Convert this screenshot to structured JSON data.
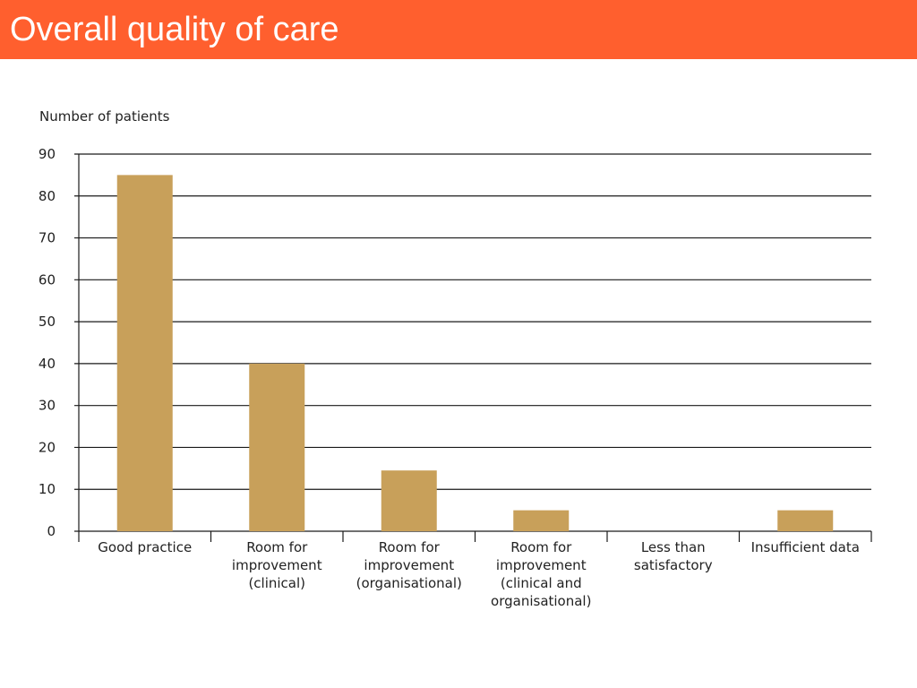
{
  "slide": {
    "title": "Overall quality of care",
    "header_color": "#ff5f2e"
  },
  "chart_data": {
    "type": "bar",
    "title": "",
    "ylabel": "Number of patients",
    "xlabel": "",
    "ylim": [
      0,
      90
    ],
    "yticks": [
      0,
      10,
      20,
      30,
      40,
      50,
      60,
      70,
      80,
      90
    ],
    "grid": true,
    "bar_color": "#c8a05a",
    "categories": [
      [
        "Good practice"
      ],
      [
        "Room for",
        "improvement",
        "(clinical)"
      ],
      [
        "Room for",
        "improvement",
        "(organisational)"
      ],
      [
        "Room for",
        "improvement",
        "(clinical and",
        "organisational)"
      ],
      [
        "Less than",
        "satisfactory"
      ],
      [
        "Insufficient data"
      ]
    ],
    "values": [
      85,
      40,
      14.5,
      5,
      0,
      5
    ]
  }
}
